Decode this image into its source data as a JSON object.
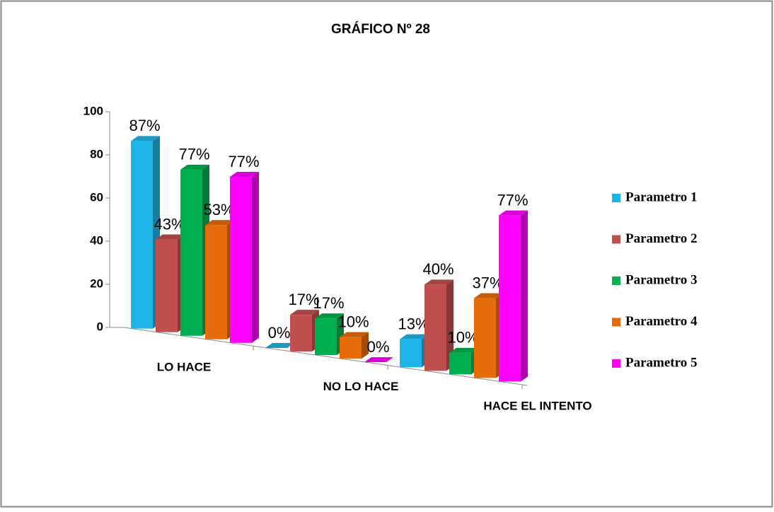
{
  "chart_data": {
    "type": "bar3d",
    "title": "GRÁFICO Nº 28",
    "categories": [
      "LO HACE",
      "NO LO HACE",
      "HACE EL INTENTO"
    ],
    "series": [
      {
        "name": "Parametro 1",
        "color": "#1eb4e8",
        "values": [
          87,
          0,
          13
        ],
        "value_labels": [
          "87%",
          "0%",
          "13%"
        ]
      },
      {
        "name": "Parametro 2",
        "color": "#c0504d",
        "values": [
          43,
          17,
          40
        ],
        "value_labels": [
          "43%",
          "17%",
          "40%"
        ]
      },
      {
        "name": "Parametro 3",
        "color": "#00b050",
        "values": [
          77,
          17,
          10
        ],
        "value_labels": [
          "77%",
          "17%",
          "10%"
        ]
      },
      {
        "name": "Parametro 4",
        "color": "#e46c0a",
        "values": [
          53,
          10,
          37
        ],
        "value_labels": [
          "53%",
          "10%",
          "37%"
        ]
      },
      {
        "name": "Parametro 5",
        "color": "#ff00ff",
        "values": [
          77,
          0,
          77
        ],
        "value_labels": [
          "77%",
          "0%",
          "77%"
        ]
      }
    ],
    "ylim": [
      0,
      100
    ],
    "yticks": [
      0,
      20,
      40,
      60,
      80,
      100
    ],
    "legend": "right"
  }
}
